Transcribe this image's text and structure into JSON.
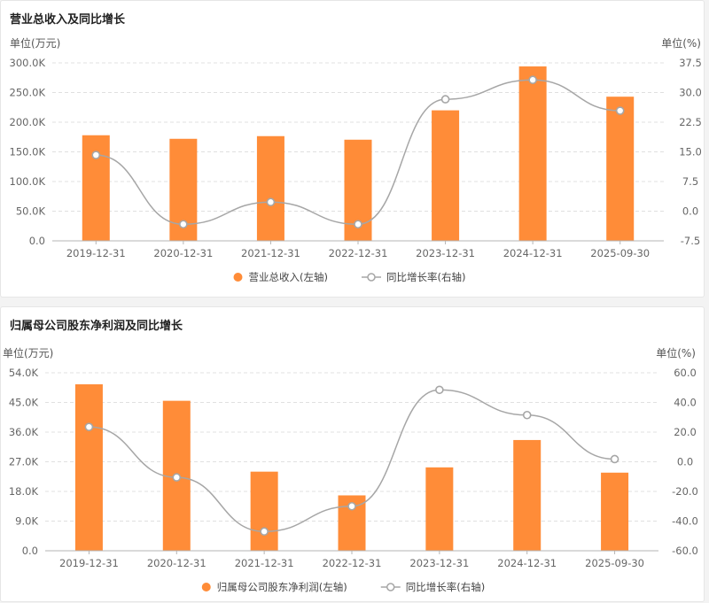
{
  "chart_data": [
    {
      "type": "bar",
      "title": "营业总收入及同比增长",
      "left_unit": "单位(万元)",
      "right_unit": "单位(%)",
      "categories": [
        "2019-12-31",
        "2020-12-31",
        "2021-12-31",
        "2022-12-31",
        "2023-12-31",
        "2024-12-31",
        "2025-09-30"
      ],
      "left_ylim": [
        0,
        300000
      ],
      "left_ticks": [
        0,
        50000,
        100000,
        150000,
        200000,
        250000,
        300000
      ],
      "left_tick_labels": [
        "0.0",
        "50.0K",
        "100.0K",
        "150.0K",
        "200.0K",
        "250.0K",
        "300.0K"
      ],
      "right_ylim": [
        -7.5,
        37.5
      ],
      "right_ticks": [
        -7.5,
        0,
        7.5,
        15,
        22.5,
        30,
        37.5
      ],
      "right_tick_labels": [
        "-7.5",
        "0.0",
        "7.5",
        "15.0",
        "22.5",
        "30.0",
        "37.5"
      ],
      "series": [
        {
          "name": "营业总收入(左轴)",
          "kind": "bar",
          "axis": "left",
          "color": "#ff8c38",
          "values": [
            178000,
            172000,
            176500,
            170500,
            220000,
            294000,
            243000
          ]
        },
        {
          "name": "同比增长率(右轴)",
          "kind": "line",
          "axis": "right",
          "color": "#a6a6a6",
          "values": [
            14.2,
            -3.3,
            2.3,
            -3.3,
            28.3,
            33.2,
            25.4
          ]
        }
      ],
      "grid": true,
      "legend": "bottom-center"
    },
    {
      "type": "bar",
      "title": "归属母公司股东净利润及同比增长",
      "left_unit": "单位(万元)",
      "right_unit": "单位(%)",
      "categories": [
        "2019-12-31",
        "2020-12-31",
        "2021-12-31",
        "2022-12-31",
        "2023-12-31",
        "2024-12-31",
        "2025-09-30"
      ],
      "left_ylim": [
        0,
        54000
      ],
      "left_ticks": [
        0,
        9000,
        18000,
        27000,
        36000,
        45000,
        54000
      ],
      "left_tick_labels": [
        "0.0",
        "9.0K",
        "18.0K",
        "27.0K",
        "36.0K",
        "45.0K",
        "54.0K"
      ],
      "right_ylim": [
        -60,
        60
      ],
      "right_ticks": [
        -60,
        -40,
        -20,
        0,
        20,
        40,
        60
      ],
      "right_tick_labels": [
        "-60.0",
        "-40.0",
        "-20.0",
        "0.0",
        "20.0",
        "40.0",
        "60.0"
      ],
      "series": [
        {
          "name": "归属母公司股东净利润(左轴)",
          "kind": "bar",
          "axis": "left",
          "color": "#ff8c38",
          "values": [
            50500,
            45500,
            24000,
            16800,
            25300,
            33600,
            23700
          ]
        },
        {
          "name": "同比增长率(右轴)",
          "kind": "line",
          "axis": "right",
          "color": "#a6a6a6",
          "values": [
            23.5,
            -10.5,
            -47.0,
            -30.0,
            48.5,
            31.5,
            1.8
          ]
        }
      ],
      "grid": true,
      "legend": "bottom-center"
    }
  ]
}
